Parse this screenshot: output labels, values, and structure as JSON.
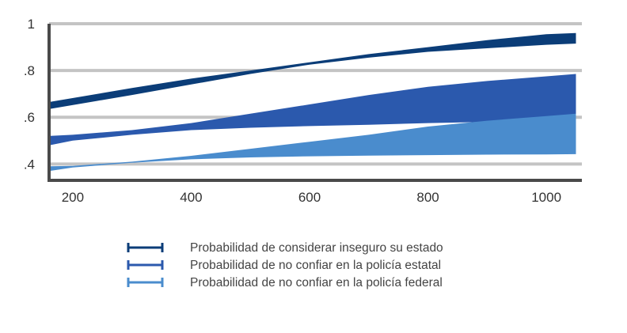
{
  "chart_data": {
    "type": "area",
    "title": "",
    "xlabel": "",
    "ylabel": "",
    "xlim": [
      160,
      1060
    ],
    "ylim": [
      0.33,
      1.0
    ],
    "grid": true,
    "xticks": [
      200,
      400,
      600,
      800,
      1000
    ],
    "xtick_labels": [
      "200",
      "400",
      "600",
      "800",
      "1000"
    ],
    "yticks": [
      0.4,
      0.6,
      0.8,
      1.0
    ],
    "ytick_labels": [
      ".4",
      ".6",
      ".8",
      "1"
    ],
    "legend_position": "bottom",
    "series": [
      {
        "name": "Probabilidad de considerar inseguro su estado",
        "color": "#0b3d78",
        "x": [
          160,
          300,
          400,
          500,
          600,
          700,
          800,
          900,
          1000,
          1050
        ],
        "lower": [
          0.635,
          0.695,
          0.74,
          0.785,
          0.825,
          0.855,
          0.88,
          0.895,
          0.91,
          0.915
        ],
        "upper": [
          0.665,
          0.725,
          0.765,
          0.8,
          0.835,
          0.87,
          0.9,
          0.93,
          0.955,
          0.96
        ]
      },
      {
        "name": "Probabilidad de no confiar en la policía estatal",
        "color": "#2b59ad",
        "x": [
          160,
          200,
          300,
          400,
          500,
          600,
          700,
          800,
          900,
          1000,
          1050
        ],
        "lower": [
          0.48,
          0.5,
          0.525,
          0.545,
          0.555,
          0.562,
          0.568,
          0.575,
          0.58,
          0.585,
          0.59
        ],
        "upper": [
          0.52,
          0.525,
          0.545,
          0.575,
          0.615,
          0.655,
          0.695,
          0.73,
          0.755,
          0.775,
          0.785
        ]
      },
      {
        "name": "Probabilidad de no confiar en la policía federal",
        "color": "#4a8ccd",
        "x": [
          160,
          200,
          300,
          400,
          500,
          600,
          700,
          800,
          900,
          1000,
          1050
        ],
        "lower": [
          0.37,
          0.385,
          0.405,
          0.42,
          0.428,
          0.433,
          0.436,
          0.438,
          0.44,
          0.441,
          0.442
        ],
        "upper": [
          0.39,
          0.392,
          0.41,
          0.435,
          0.465,
          0.495,
          0.525,
          0.56,
          0.585,
          0.605,
          0.615
        ]
      }
    ]
  }
}
